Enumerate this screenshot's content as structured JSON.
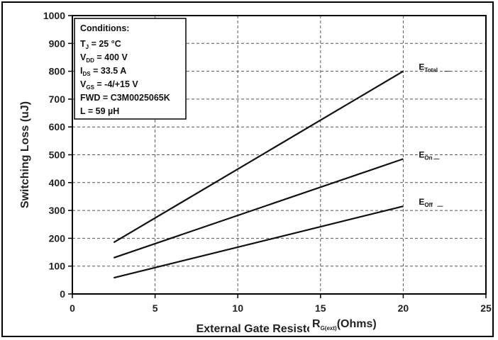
{
  "chart_data": {
    "type": "line",
    "xlabel": "External Gate Resisto",
    "xlabel_overlay": {
      "base": "R",
      "sub": "G(ext)",
      "unit": "(Ohms)"
    },
    "ylabel": "Switching Loss (uJ)",
    "xlim": [
      0,
      25
    ],
    "ylim": [
      0,
      1000
    ],
    "xticks": [
      "0",
      "5",
      "10",
      "15",
      "20",
      "25"
    ],
    "yticks": [
      "0",
      "100",
      "200",
      "300",
      "400",
      "500",
      "600",
      "700",
      "800",
      "900",
      "1000"
    ],
    "grid": true,
    "series": [
      {
        "name": "ETotal",
        "label_base": "E",
        "label_sub": "Total",
        "x": [
          2.5,
          20
        ],
        "y": [
          185,
          800
        ]
      },
      {
        "name": "EOn",
        "label_base": "E",
        "label_sub": "On",
        "x": [
          2.5,
          20
        ],
        "y": [
          130,
          485
        ]
      },
      {
        "name": "EOff",
        "label_base": "E",
        "label_sub": "Off",
        "x": [
          2.5,
          20
        ],
        "y": [
          58,
          315
        ]
      }
    ],
    "conditions": {
      "title": "Conditions:",
      "lines": [
        {
          "base": "T",
          "sub": "J",
          "rest": " = 25 °C"
        },
        {
          "base": "V",
          "sub": "DD",
          "rest": " =  400 V"
        },
        {
          "base": "I",
          "sub": "DS",
          "rest": " =  33.5 A"
        },
        {
          "base": "V",
          "sub": "GS",
          "rest": " = -4/+15 V"
        },
        {
          "base": "FWD = C3M0025065K",
          "sub": "",
          "rest": ""
        },
        {
          "base": "L = 59 µH",
          "sub": "",
          "rest": ""
        }
      ]
    },
    "colors": {
      "line": "#111111",
      "grid": "#555555",
      "frame": "#000000"
    }
  }
}
